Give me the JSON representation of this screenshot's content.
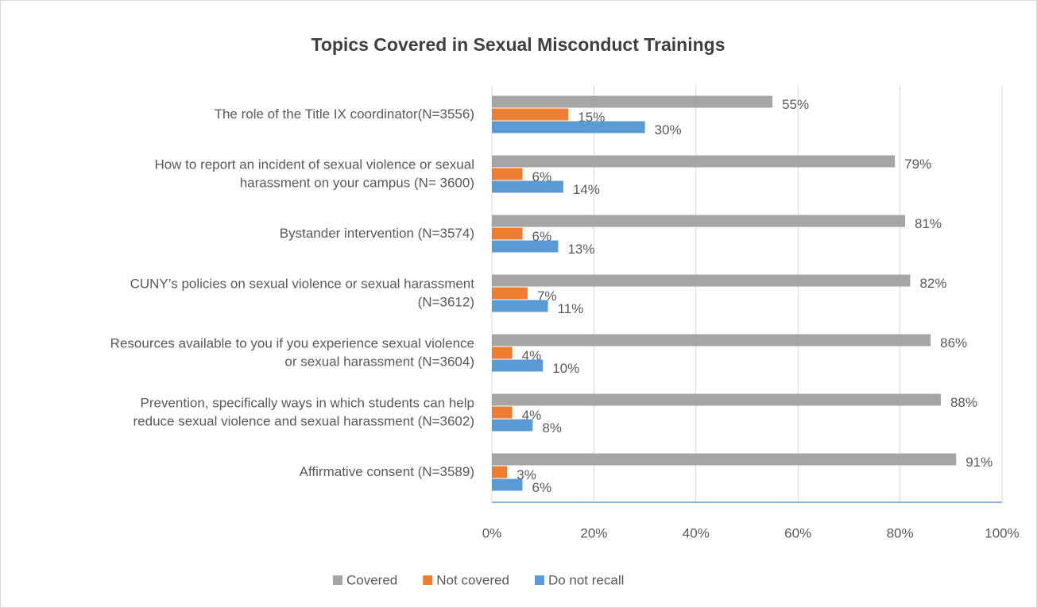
{
  "chart_data": {
    "type": "bar",
    "orientation": "horizontal",
    "title": "Topics Covered in Sexual Misconduct Trainings",
    "categories": [
      [
        "The role of the Title IX coordinator(N=3556)"
      ],
      [
        "How to report an incident of sexual violence or sexual",
        "harassment on your  campus  (N= 3600)"
      ],
      [
        "Bystander intervention (N=3574)"
      ],
      [
        "CUNY’s policies on sexual violence or sexual harassment",
        "(N=3612)"
      ],
      [
        "Resources available to you if you experience sexual violence",
        "or sexual harassment (N=3604)"
      ],
      [
        "Prevention, specifically ways in which students can help",
        "reduce sexual violence and sexual harassment (N=3602)"
      ],
      [
        "Affirmative consent (N=3589)"
      ]
    ],
    "series": [
      {
        "name": "Covered",
        "color": "#a5a5a5",
        "values": [
          55,
          79,
          81,
          82,
          86,
          88,
          91
        ],
        "value_labels": [
          "55%",
          "79%",
          "81%",
          "82%",
          "86%",
          "88%",
          "91%"
        ]
      },
      {
        "name": "Not covered",
        "color": "#ed7d31",
        "values": [
          15,
          6,
          6,
          7,
          4,
          4,
          3
        ],
        "value_labels": [
          "15%",
          "6%",
          "6%",
          "7%",
          "4%",
          "4%",
          "3%"
        ]
      },
      {
        "name": "Do not recall",
        "color": "#5b9bd5",
        "values": [
          30,
          14,
          13,
          11,
          10,
          8,
          6
        ],
        "value_labels": [
          "30%",
          "14%",
          "13%",
          "11%",
          "10%",
          "8%",
          "6%"
        ]
      }
    ],
    "xlim": [
      0,
      100
    ],
    "xticks": [
      {
        "value": 0,
        "label": "0%"
      },
      {
        "value": 20,
        "label": "20%"
      },
      {
        "value": 40,
        "label": "40%"
      },
      {
        "value": 60,
        "label": "60%"
      },
      {
        "value": 80,
        "label": "80%"
      },
      {
        "value": 100,
        "label": "100%"
      }
    ],
    "grid": true,
    "legend": "bottom"
  }
}
